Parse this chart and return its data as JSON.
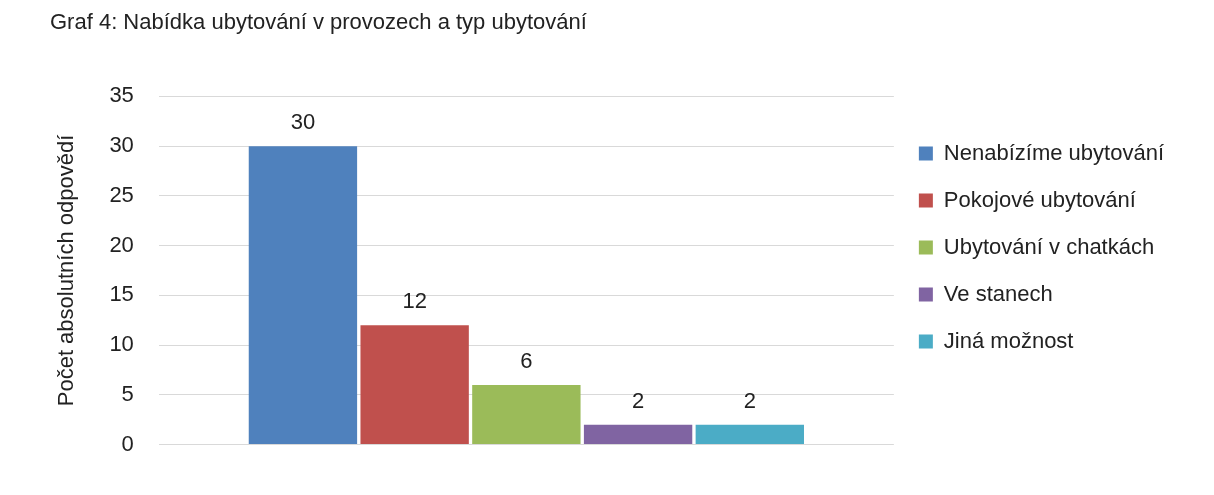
{
  "chart_data": {
    "type": "bar",
    "title": "Graf 4: Nabídka ubytování v provozech a typ ubytování",
    "ylabel": "Počet absolutních odpovědí",
    "categories": [
      null
    ],
    "series": [
      {
        "name": "Nenabízíme ubytování",
        "color": "#4f81bd",
        "values": [
          30
        ]
      },
      {
        "name": "Pokojové ubytování",
        "color": "#c0504d",
        "values": [
          12
        ]
      },
      {
        "name": "Ubytování v chatkách",
        "color": "#9bbb59",
        "values": [
          6
        ]
      },
      {
        "name": "Ve stanech",
        "color": "#8064a2",
        "values": [
          2
        ]
      },
      {
        "name": "Jiná možnost",
        "color": "#4bacc6",
        "values": [
          2
        ]
      }
    ],
    "ylim": [
      0,
      35
    ],
    "yticks": [
      0,
      5,
      10,
      15,
      20,
      25,
      30,
      35
    ],
    "grid": "y",
    "legend": "right",
    "data_labels": true
  }
}
